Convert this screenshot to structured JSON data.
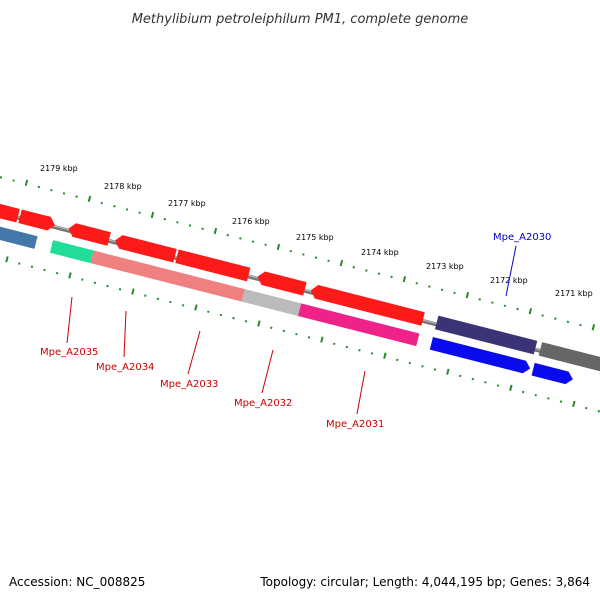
{
  "title": "Methylibium petroleiphilum PM1, complete genome",
  "footer": {
    "accession": "Accession: NC_008825",
    "summary": "Topology: circular; Length: 4,044,195 bp; Genes: 3,864"
  },
  "scale_labels": [
    "2179 kbp",
    "2178 kbp",
    "2177 kbp",
    "2176 kbp",
    "2175 kbp",
    "2174 kbp",
    "2173 kbp",
    "2172 kbp",
    "2171 kbp"
  ],
  "gene_labels": {
    "Mpe_A2035": "Mpe_A2035",
    "Mpe_A2034": "Mpe_A2034",
    "Mpe_A2033": "Mpe_A2033",
    "Mpe_A2032": "Mpe_A2032",
    "Mpe_A2031": "Mpe_A2031",
    "Mpe_A2030": "Mpe_A2030"
  },
  "colors": {
    "backbone": "#777777",
    "scale_ticks": "#2a8a2a",
    "forward_gene": "#ff1a1a",
    "label_red": "#cc0000",
    "label_blue": "#0000cc",
    "feature_dark_blue": "#3a3477",
    "feature_blue": "#0a0aee",
    "feature_gray": "#666666",
    "feature_light_gray": "#bbbbbb",
    "feature_salmon": "#f08080",
    "feature_pink": "#ee2288",
    "feature_mint": "#22dd99",
    "feature_steel_blue": "#4477aa"
  }
}
